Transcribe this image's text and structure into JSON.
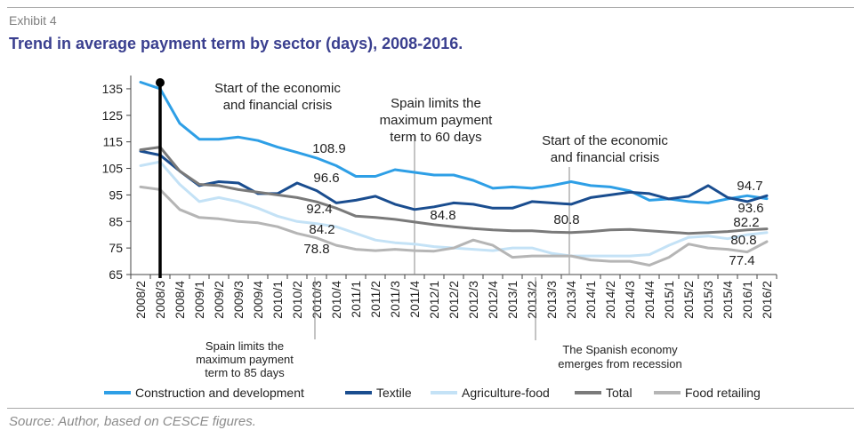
{
  "header": {
    "exhibit": "Exhibit 4",
    "title": "Trend in average payment term by sector (days), 2008-2016."
  },
  "source": "Source: Author, based on CESCE figures.",
  "chart_data": {
    "type": "line",
    "ylim": [
      65,
      140
    ],
    "yticks": [
      65,
      75,
      85,
      95,
      105,
      115,
      125,
      135
    ],
    "grid": false,
    "legend_position": "bottom",
    "categories": [
      "2008/2",
      "2008/3",
      "2008/4",
      "2009/1",
      "2009/2",
      "2009/3",
      "2009/4",
      "2010/1",
      "2010/2",
      "2010/3",
      "2010/4",
      "2011/1",
      "2011/2",
      "2011/3",
      "2011/4",
      "2012/1",
      "2012/2",
      "2012/3",
      "2012/4",
      "2013/1",
      "2013/2",
      "2013/3",
      "2013/4",
      "2014/1",
      "2014/2",
      "2014/3",
      "2014/4",
      "2015/1",
      "2015/2",
      "2015/3",
      "2015/4",
      "2016/1",
      "2016/2"
    ],
    "series": [
      {
        "name": "Construction and development",
        "color": "#2e9fe6",
        "width": 3,
        "values": [
          137.5,
          135,
          122,
          116,
          116,
          116.8,
          115.5,
          113,
          111,
          108.9,
          106,
          102,
          102,
          104.5,
          103.5,
          102.5,
          102.5,
          100.5,
          97.5,
          98,
          97.5,
          98.5,
          100,
          98.5,
          98,
          96.5,
          93,
          93.5,
          92.5,
          92,
          93.5,
          94.7,
          93.6
        ]
      },
      {
        "name": "Textile",
        "color": "#1a4d8f",
        "width": 3,
        "values": [
          111.5,
          110,
          104,
          98.5,
          100,
          99.5,
          95.5,
          95.5,
          99.5,
          96.6,
          92,
          93,
          94.5,
          91.5,
          89.5,
          90.5,
          92,
          91.5,
          90,
          90,
          92.5,
          92,
          91.5,
          94,
          95,
          96,
          95.5,
          93.5,
          94.5,
          98.5,
          94,
          92.5,
          94.7
        ]
      },
      {
        "name": "Agriculture-food",
        "color": "#c4e2f6",
        "width": 3,
        "values": [
          106,
          107.5,
          99,
          92.5,
          94,
          92.5,
          90,
          87,
          85,
          84.2,
          83,
          80.5,
          78,
          77,
          76.5,
          75.5,
          75,
          74.5,
          74,
          75,
          75,
          73,
          72,
          72,
          72,
          72,
          72.5,
          76,
          79,
          79.5,
          78.5,
          80,
          80.8
        ]
      },
      {
        "name": "Total",
        "color": "#7a7a7a",
        "width": 3,
        "values": [
          112,
          113,
          104,
          99,
          98.5,
          97,
          96,
          95,
          94,
          92.4,
          90,
          87,
          86.5,
          85.8,
          84.8,
          83.8,
          83,
          82.3,
          81.8,
          81.5,
          81.5,
          81,
          80.8,
          81.2,
          81.8,
          82,
          81.5,
          81,
          80.5,
          80.8,
          81.2,
          81.8,
          82.2
        ]
      },
      {
        "name": "Food retailing",
        "color": "#b5b5b5",
        "width": 3,
        "values": [
          98,
          97,
          89.5,
          86.5,
          86,
          85,
          84.5,
          83,
          80.5,
          78.8,
          76,
          74.5,
          74,
          74.5,
          74,
          73.8,
          75,
          78,
          76,
          71.5,
          72,
          72,
          72,
          70.5,
          70,
          70,
          68.5,
          71.5,
          76.5,
          75,
          74.5,
          73.5,
          77.4
        ]
      }
    ],
    "data_labels": [
      {
        "text": "108.9",
        "series": 0,
        "index": 9
      },
      {
        "text": "96.6",
        "series": 1,
        "index": 9
      },
      {
        "text": "92.4",
        "series": 3,
        "index": 9
      },
      {
        "text": "84.2",
        "series": 2,
        "index": 9
      },
      {
        "text": "78.8",
        "series": 4,
        "index": 9
      },
      {
        "text": "84.8",
        "series": 3,
        "index": 14
      },
      {
        "text": "80.8",
        "series": 3,
        "index": 22
      },
      {
        "text": "94.7",
        "series": 0,
        "index": 31
      },
      {
        "text": "93.6",
        "series": 0,
        "index": 32
      },
      {
        "text": "82.2",
        "series": 3,
        "index": 32
      },
      {
        "text": "80.8",
        "series": 2,
        "index": 32
      },
      {
        "text": "77.4",
        "series": 4,
        "index": 32
      }
    ],
    "annotations": [
      {
        "lines": [
          "Start of the economic",
          "and financial crisis"
        ],
        "index": 1
      },
      {
        "lines": [
          "Spain limits the",
          "maximum payment",
          "term to 60 days"
        ],
        "index": 14
      },
      {
        "lines": [
          "Start of the economic",
          "and financial crisis"
        ],
        "index": 22
      },
      {
        "lines": [
          "Spain limits the",
          "maximum payment",
          "term to 85 days"
        ],
        "index": 9
      },
      {
        "lines": [
          "The Spanish economy",
          "emerges from recession"
        ],
        "index": 21
      }
    ]
  }
}
